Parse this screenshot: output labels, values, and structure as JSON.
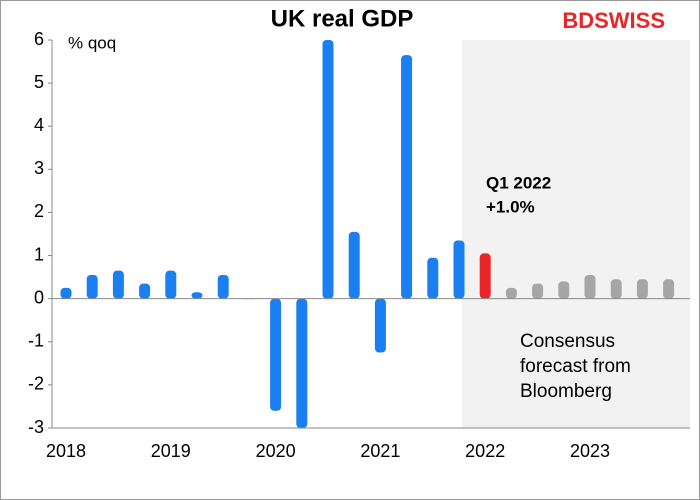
{
  "chart_data": {
    "type": "bar",
    "title": "UK real GDP",
    "brand": "BDSWISS",
    "y_label": "% qoq",
    "categories": [
      "2018",
      null,
      null,
      null,
      "2019",
      null,
      null,
      null,
      "2020",
      null,
      null,
      null,
      "2021",
      null,
      null,
      null,
      "2022",
      null,
      null,
      null,
      "2023",
      null,
      null,
      null
    ],
    "values": [
      0.25,
      0.55,
      0.65,
      0.35,
      0.65,
      0.15,
      0.55,
      0,
      -2.6,
      -3,
      6,
      1.55,
      -1.25,
      5.65,
      0.95,
      1.35,
      1.05,
      0.25,
      0.35,
      0.4,
      0.55,
      0.45,
      0.45,
      0.45
    ],
    "colors": [
      "#1a7ff0",
      "#1a7ff0",
      "#1a7ff0",
      "#1a7ff0",
      "#1a7ff0",
      "#1a7ff0",
      "#1a7ff0",
      "#1a7ff0",
      "#1a7ff0",
      "#1a7ff0",
      "#1a7ff0",
      "#1a7ff0",
      "#1a7ff0",
      "#1a7ff0",
      "#1a7ff0",
      "#1a7ff0",
      "#e8262a",
      "#a6a6a6",
      "#a6a6a6",
      "#a6a6a6",
      "#a6a6a6",
      "#a6a6a6",
      "#a6a6a6",
      "#a6a6a6"
    ],
    "ylim": [
      -3,
      6
    ],
    "yticks": [
      -3,
      -2,
      -1,
      0,
      1,
      2,
      3,
      4,
      5,
      6
    ],
    "annotations": [
      "Q1  2022",
      "+1.0%",
      "Consensus",
      "forecast from",
      "Bloomberg"
    ]
  }
}
